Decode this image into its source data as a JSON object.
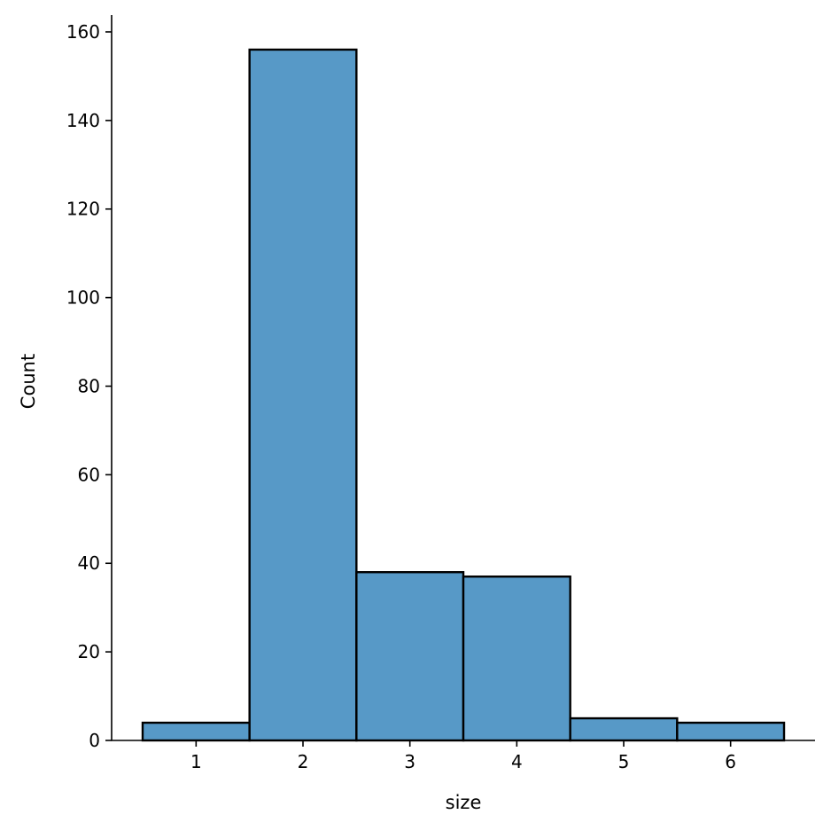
{
  "chart_data": {
    "type": "bar",
    "title": "",
    "xlabel": "size",
    "ylabel": "Count",
    "categories": [
      "1",
      "2",
      "3",
      "4",
      "5",
      "6"
    ],
    "x": [
      1,
      2,
      3,
      4,
      5,
      6
    ],
    "values": [
      4,
      156,
      38,
      37,
      5,
      4
    ],
    "bin_width": 1,
    "xlim": [
      0.21,
      6.79
    ],
    "ylim": [
      0,
      163.8
    ],
    "xticks": [
      1,
      2,
      3,
      4,
      5,
      6
    ],
    "yticks": [
      0,
      20,
      40,
      60,
      80,
      100,
      120,
      140,
      160
    ],
    "grid": false,
    "legend": "none",
    "bar_color": "#5799c7",
    "edge_color": "#000000"
  }
}
